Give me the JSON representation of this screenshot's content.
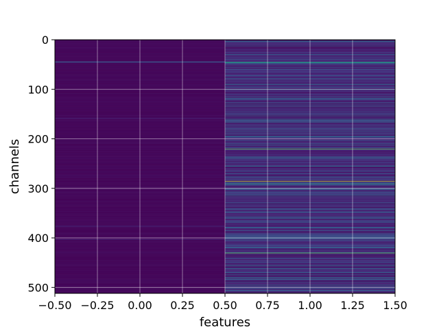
{
  "chart_data": {
    "type": "heatmap",
    "title": "",
    "xlabel": "features",
    "ylabel": "channels",
    "xlim": [
      -0.5,
      1.5
    ],
    "ylim": [
      512,
      0
    ],
    "y_inverted": true,
    "grid": true,
    "colormap": "viridis",
    "x_ticks": [
      "−0.50",
      "−0.25",
      "0.00",
      "0.25",
      "0.50",
      "0.75",
      "1.00",
      "1.25",
      "1.50"
    ],
    "x_tick_values": [
      -0.5,
      -0.25,
      0.0,
      0.25,
      0.5,
      0.75,
      1.0,
      1.25,
      1.5
    ],
    "y_ticks": [
      "0",
      "100",
      "200",
      "300",
      "400",
      "500"
    ],
    "y_tick_values": [
      0,
      100,
      200,
      300,
      400,
      500
    ],
    "columns": [
      {
        "x": 0,
        "x_range": [
          -0.5,
          0.5
        ],
        "baseline": 0.03,
        "highlights": [
          {
            "channel": 44,
            "value": 0.35
          },
          {
            "channel": 45,
            "value": 0.3
          },
          {
            "channel": 158,
            "value": 0.15
          },
          {
            "channel": 376,
            "value": 0.15
          },
          {
            "channel": 403,
            "value": 0.15
          }
        ]
      },
      {
        "x": 1,
        "x_range": [
          0.5,
          1.5
        ],
        "baseline": 0.18,
        "highlights": [
          {
            "channel": 3,
            "value": 0.45
          },
          {
            "channel": 12,
            "value": 0.35
          },
          {
            "channel": 30,
            "value": 0.3
          },
          {
            "channel": 45,
            "value": 0.75
          },
          {
            "channel": 46,
            "value": 0.6
          },
          {
            "channel": 60,
            "value": 0.35
          },
          {
            "channel": 80,
            "value": 0.3
          },
          {
            "channel": 100,
            "value": 0.4
          },
          {
            "channel": 120,
            "value": 0.35
          },
          {
            "channel": 145,
            "value": 0.3
          },
          {
            "channel": 160,
            "value": 0.45
          },
          {
            "channel": 185,
            "value": 0.4
          },
          {
            "channel": 195,
            "value": 0.45
          },
          {
            "channel": 220,
            "value": 0.85
          },
          {
            "channel": 235,
            "value": 0.35
          },
          {
            "channel": 255,
            "value": 0.5
          },
          {
            "channel": 270,
            "value": 0.35
          },
          {
            "channel": 285,
            "value": 0.95
          },
          {
            "channel": 290,
            "value": 0.7
          },
          {
            "channel": 315,
            "value": 0.4
          },
          {
            "channel": 340,
            "value": 0.35
          },
          {
            "channel": 360,
            "value": 0.45
          },
          {
            "channel": 380,
            "value": 0.35
          },
          {
            "channel": 400,
            "value": 0.4
          },
          {
            "channel": 430,
            "value": 0.85
          },
          {
            "channel": 455,
            "value": 0.45
          },
          {
            "channel": 470,
            "value": 0.35
          },
          {
            "channel": 480,
            "value": 0.55
          },
          {
            "channel": 495,
            "value": 0.4
          }
        ]
      }
    ]
  }
}
